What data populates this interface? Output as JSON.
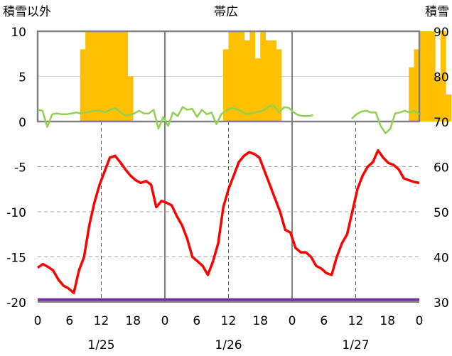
{
  "chart_data": {
    "type": "line",
    "title": "帯広",
    "left_axis_label": "積雪以外",
    "right_axis_label": "積雪",
    "left_ylim": [
      -20,
      10
    ],
    "left_ticks": [
      10,
      5,
      0,
      -5,
      -10,
      -15,
      -20
    ],
    "right_ylim": [
      30,
      90
    ],
    "right_ticks": [
      90,
      80,
      70,
      60,
      50,
      40,
      30
    ],
    "x_tick_labels": [
      "0",
      "6",
      "12",
      "18",
      "0",
      "6",
      "12",
      "18",
      "0",
      "6",
      "12",
      "18",
      "0"
    ],
    "date_labels": [
      "1/25",
      "1/26",
      "1/27"
    ],
    "grid": "dashed",
    "series": [
      {
        "color": "#ff0000",
        "axis": "left",
        "style": "line",
        "values": [
          -16.2,
          -15.8,
          -16.1,
          -16.5,
          -17.5,
          -18.2,
          -18.5,
          -19.0,
          -16.5,
          -15.0,
          -11.5,
          -9.0,
          -7.0,
          -5.5,
          -4.0,
          -3.8,
          -4.5,
          -5.3,
          -6.0,
          -6.5,
          -6.8,
          -6.6,
          -7.0,
          -9.5,
          -8.8,
          -9.0,
          -9.3,
          -10.5,
          -11.5,
          -13.0,
          -15.0,
          -15.5,
          -16.0,
          -17.0,
          -15.5,
          -13.5,
          -9.5,
          -7.5,
          -6.0,
          -4.5,
          -3.8,
          -3.4,
          -3.6,
          -4.0,
          -5.5,
          -7.0,
          -8.5,
          -10.0,
          -12.0,
          -12.3,
          -14.0,
          -14.5,
          -14.5,
          -15.0,
          -16.0,
          -16.3,
          -16.8,
          -17.0,
          -15.0,
          -13.5,
          -12.5,
          -10.0,
          -7.5,
          -6.0,
          -5.0,
          -4.5,
          -3.2,
          -4.0,
          -4.6,
          -4.8,
          -5.3,
          -6.3,
          -6.5,
          -6.7,
          -6.8
        ]
      },
      {
        "color": "#92d050",
        "axis": "left",
        "style": "line",
        "values": [
          1.3,
          1.2,
          -0.6,
          0.8,
          0.9,
          0.8,
          0.8,
          0.9,
          1.0,
          0.9,
          1.0,
          1.1,
          1.2,
          1.2,
          1.0,
          1.3,
          1.5,
          1.1,
          0.7,
          0.7,
          0.9,
          1.2,
          0.9,
          0.9,
          1.3,
          -0.8,
          0.5,
          -0.5,
          1.0,
          0.6,
          1.6,
          1.3,
          1.4,
          0.5,
          1.3,
          0.8,
          1.0,
          -0.3,
          0.8,
          1.2,
          1.5,
          1.4,
          1.2,
          0.8,
          0.9,
          1.0,
          1.1,
          1.3,
          1.7,
          1.7,
          1.0,
          1.6,
          1.5,
          1.0,
          0.7,
          0.6,
          0.6,
          0.7,
          null,
          null,
          null,
          null,
          null,
          null,
          null,
          0.3,
          0.8,
          1.1,
          1.2,
          1.0,
          1.0,
          -0.5,
          -1.3,
          -0.8,
          0.9,
          1.0,
          1.2,
          1.0,
          1.2,
          0.8
        ]
      },
      {
        "color": "#7030a0",
        "axis": "right",
        "style": "line",
        "values": [
          30.5,
          30.5,
          30.5,
          30.5,
          30.5,
          30.5,
          30.5,
          30.5,
          30.5,
          30.5,
          30.5,
          30.5,
          30.5,
          30.5,
          30.5,
          30.5,
          30.5,
          30.5,
          30.5,
          30.5,
          30.5,
          30.5,
          30.5,
          30.5,
          30.5,
          30.5,
          30.5,
          30.5,
          30.5,
          30.5,
          30.5,
          30.5,
          30.5,
          30.5,
          30.5,
          30.5,
          30.5,
          30.5,
          30.5,
          30.5,
          30.5,
          30.5,
          30.5,
          30.5,
          30.5,
          30.5,
          30.5,
          30.5,
          30.5,
          30.5,
          30.5,
          30.5,
          30.5,
          30.5,
          30.5,
          30.5,
          30.5,
          30.5,
          30.5,
          30.5,
          30.5,
          30.5,
          30.5,
          30.5,
          30.5,
          30.5,
          30.5,
          30.5,
          30.5,
          30.5,
          30.5,
          30.5,
          30.5
        ]
      },
      {
        "color": "#ffc000",
        "axis": "left",
        "style": "bar",
        "values": [
          0,
          0,
          0,
          0,
          0,
          0,
          0,
          0,
          8,
          10,
          10,
          10,
          10,
          10,
          10,
          10,
          10,
          5,
          0,
          0,
          0,
          0,
          0,
          0,
          0,
          0,
          0,
          0,
          0,
          0,
          0,
          0,
          0,
          0,
          0,
          8,
          10,
          10,
          10,
          9,
          10,
          7,
          10,
          9,
          9,
          8,
          0,
          0,
          0,
          0,
          0,
          0,
          0,
          0,
          0,
          0,
          0,
          0,
          0,
          0,
          0,
          0,
          0,
          0,
          0,
          0,
          0,
          0,
          0,
          0,
          6,
          8,
          10,
          10,
          10,
          5,
          10,
          3,
          0,
          0,
          0,
          0,
          0,
          0,
          0,
          0,
          0
        ]
      }
    ]
  }
}
